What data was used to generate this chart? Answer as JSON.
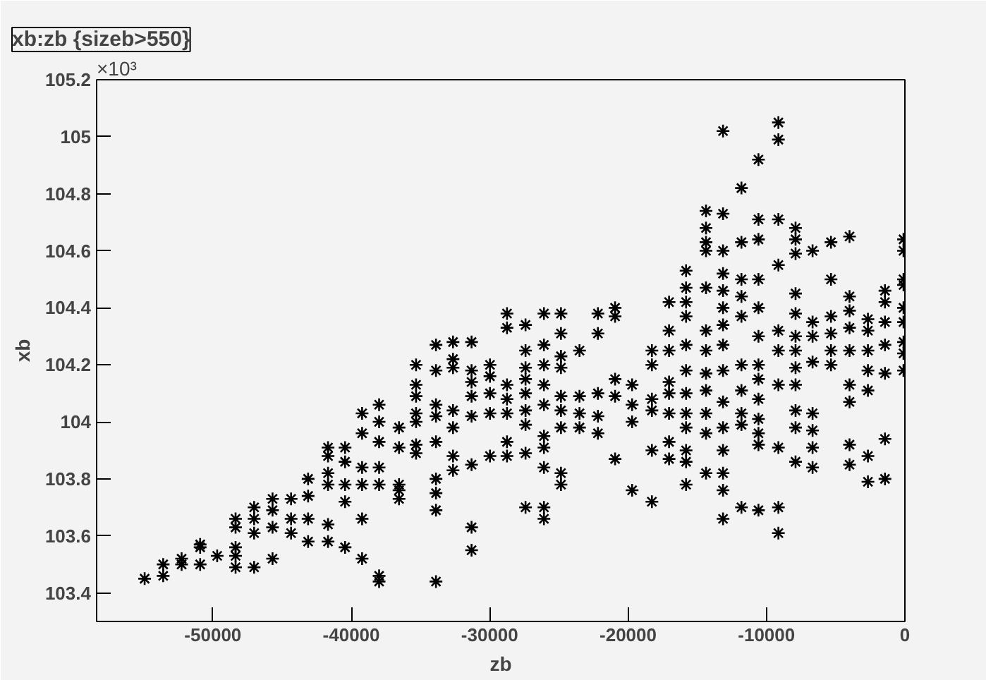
{
  "chart_data": {
    "type": "scatter",
    "title": "xb:zb {sizeb>550}",
    "xlabel": "zb",
    "ylabel": "xb",
    "annotations": [
      "×10³"
    ],
    "xlim": [
      -58400,
      0
    ],
    "ylim": [
      103.3,
      105.2
    ],
    "xticks": [
      -50000,
      -40000,
      -30000,
      -20000,
      -10000,
      0
    ],
    "yticks": [
      103.4,
      103.6,
      103.8,
      104,
      104.2,
      104.4,
      104.6,
      104.8,
      105,
      105.2
    ],
    "grid": false,
    "marker": "cross",
    "series": [
      {
        "color": "#000000",
        "x": [
          -54930,
          -53590,
          -53590,
          -52260,
          -52260,
          -50920,
          -50920,
          -50920,
          -49690,
          -48360,
          -48360,
          -48360,
          -48360,
          -48360,
          -47020,
          -47020,
          -47020,
          -47020,
          -45690,
          -45690,
          -45690,
          -45690,
          -44350,
          -44350,
          -44350,
          -43120,
          -43120,
          -43120,
          -43120,
          -41680,
          -41680,
          -41680,
          -41680,
          -41680,
          -41680,
          -40450,
          -40450,
          -40450,
          -40450,
          -40450,
          -39220,
          -39220,
          -39220,
          -39220,
          -39220,
          -39220,
          -37990,
          -37990,
          -37990,
          -37990,
          -37990,
          -37990,
          -37990,
          -36550,
          -36550,
          -36550,
          -36550,
          -36550,
          -35320,
          -35320,
          -35320,
          -35320,
          -35320,
          -35320,
          -35320,
          -33880,
          -33880,
          -33880,
          -33880,
          -33880,
          -33880,
          -33880,
          -33880,
          -33880,
          -32650,
          -32650,
          -32650,
          -32650,
          -32650,
          -32650,
          -32650,
          -31310,
          -31310,
          -31310,
          -31310,
          -31310,
          -31310,
          -31310,
          -31310,
          -29980,
          -29980,
          -29980,
          -29980,
          -29980,
          -28750,
          -28750,
          -28750,
          -28750,
          -28750,
          -28750,
          -28750,
          -27410,
          -27410,
          -27410,
          -27410,
          -27410,
          -27410,
          -27410,
          -27410,
          -27410,
          -26080,
          -26080,
          -26080,
          -26080,
          -26080,
          -26080,
          -26080,
          -26080,
          -26080,
          -26080,
          -24850,
          -24850,
          -24850,
          -24850,
          -24850,
          -24850,
          -24850,
          -24850,
          -24850,
          -23510,
          -23510,
          -23510,
          -23510,
          -22180,
          -22180,
          -22180,
          -22180,
          -22180,
          -20940,
          -20940,
          -20940,
          -20940,
          -20940,
          -19710,
          -19710,
          -19710,
          -19710,
          -18280,
          -18280,
          -18280,
          -18280,
          -18280,
          -18280,
          -17040,
          -17040,
          -17040,
          -17040,
          -17040,
          -17040,
          -17040,
          -17040,
          -15810,
          -15810,
          -15810,
          -15810,
          -15810,
          -15810,
          -15810,
          -15810,
          -15810,
          -15810,
          -15810,
          -15810,
          -14370,
          -14370,
          -14370,
          -14370,
          -14370,
          -14370,
          -14370,
          -14370,
          -14370,
          -14370,
          -14370,
          -14370,
          -13140,
          -13140,
          -13140,
          -13140,
          -13140,
          -13140,
          -13140,
          -13140,
          -13140,
          -13140,
          -13140,
          -13140,
          -13140,
          -13140,
          -13140,
          -11810,
          -11810,
          -11810,
          -11810,
          -11810,
          -11810,
          -11810,
          -11810,
          -11810,
          -11810,
          -10580,
          -10580,
          -10580,
          -10580,
          -10580,
          -10580,
          -10580,
          -10580,
          -10580,
          -10580,
          -10580,
          -10580,
          -10580,
          -9140,
          -9140,
          -9140,
          -9140,
          -9140,
          -9140,
          -9140,
          -9140,
          -9140,
          -9140,
          -7900,
          -7900,
          -7900,
          -7900,
          -7900,
          -7900,
          -7900,
          -7900,
          -7900,
          -7900,
          -7900,
          -7900,
          -6670,
          -6670,
          -6670,
          -6670,
          -6670,
          -6670,
          -6670,
          -6670,
          -5340,
          -5340,
          -5340,
          -5340,
          -5340,
          -5340,
          -4000,
          -4000,
          -4000,
          -4000,
          -4000,
          -4000,
          -4000,
          -4000,
          -4000,
          -2670,
          -2670,
          -2670,
          -2670,
          -2670,
          -2670,
          -2670,
          -1440,
          -1440,
          -1440,
          -1440,
          -1440,
          -1440,
          -1440,
          -100,
          -100,
          -100,
          -100,
          -100,
          -100,
          -100,
          -100,
          -100
        ],
        "values": [
          103.45,
          103.5,
          103.46,
          103.52,
          103.5,
          103.57,
          103.56,
          103.5,
          103.53,
          103.66,
          103.63,
          103.56,
          103.53,
          103.49,
          103.7,
          103.66,
          103.61,
          103.49,
          103.73,
          103.69,
          103.63,
          103.52,
          103.73,
          103.66,
          103.61,
          103.8,
          103.74,
          103.66,
          103.58,
          103.91,
          103.88,
          103.82,
          103.78,
          103.64,
          103.58,
          103.91,
          103.86,
          103.78,
          103.72,
          103.56,
          104.03,
          103.96,
          103.84,
          103.78,
          103.66,
          103.52,
          104.06,
          104.0,
          103.93,
          103.84,
          103.78,
          103.46,
          103.44,
          103.98,
          103.91,
          103.78,
          103.76,
          103.73,
          104.2,
          104.13,
          104.09,
          104.03,
          104.0,
          103.92,
          103.89,
          104.27,
          104.18,
          104.06,
          104.02,
          103.93,
          103.8,
          103.75,
          103.69,
          103.44,
          104.28,
          104.22,
          104.19,
          104.04,
          103.98,
          103.88,
          103.83,
          104.28,
          104.18,
          104.14,
          104.09,
          104.02,
          103.85,
          103.63,
          103.55,
          104.2,
          104.16,
          104.1,
          104.03,
          103.88,
          104.38,
          104.33,
          104.13,
          104.08,
          104.03,
          103.93,
          103.88,
          104.34,
          104.25,
          104.19,
          104.15,
          104.1,
          104.04,
          103.99,
          103.89,
          103.7,
          104.38,
          104.27,
          104.2,
          104.13,
          104.06,
          103.95,
          103.91,
          103.84,
          103.7,
          103.66,
          104.38,
          104.31,
          104.23,
          104.19,
          104.09,
          104.04,
          103.98,
          103.82,
          103.78,
          104.25,
          104.09,
          104.03,
          103.98,
          104.38,
          104.31,
          104.1,
          104.02,
          103.96,
          104.4,
          104.37,
          104.15,
          104.09,
          103.87,
          104.13,
          104.06,
          104.0,
          103.76,
          104.25,
          104.2,
          104.08,
          104.04,
          103.9,
          103.72,
          104.42,
          104.32,
          104.25,
          104.14,
          104.1,
          104.03,
          103.93,
          103.87,
          104.53,
          104.47,
          104.42,
          104.37,
          104.27,
          104.18,
          104.1,
          104.03,
          103.98,
          103.9,
          103.86,
          103.78,
          104.74,
          104.68,
          104.63,
          104.6,
          104.47,
          104.32,
          104.25,
          104.17,
          104.11,
          104.03,
          103.96,
          103.82,
          105.02,
          104.73,
          104.6,
          104.52,
          104.46,
          104.4,
          104.34,
          104.27,
          104.18,
          104.07,
          103.98,
          103.9,
          103.82,
          103.76,
          103.66,
          104.82,
          104.63,
          104.5,
          104.44,
          104.37,
          104.2,
          104.11,
          104.03,
          103.99,
          103.7,
          104.92,
          104.71,
          104.64,
          104.5,
          104.4,
          104.3,
          104.2,
          104.15,
          104.08,
          104.01,
          103.96,
          103.92,
          103.69,
          105.05,
          104.99,
          104.71,
          104.55,
          104.32,
          104.25,
          104.13,
          103.91,
          103.7,
          103.61,
          104.68,
          104.64,
          104.59,
          104.45,
          104.38,
          104.3,
          104.25,
          104.19,
          104.13,
          104.04,
          103.98,
          103.86,
          104.6,
          104.35,
          104.3,
          104.21,
          104.03,
          103.97,
          103.91,
          103.84,
          104.63,
          104.5,
          104.37,
          104.31,
          104.25,
          104.2,
          104.65,
          104.44,
          104.39,
          104.33,
          104.25,
          104.13,
          104.07,
          103.92,
          103.85,
          104.36,
          104.32,
          104.25,
          104.18,
          104.11,
          103.88,
          103.79,
          104.46,
          104.42,
          104.35,
          104.27,
          104.17,
          103.94,
          103.8,
          104.64,
          104.6,
          104.5,
          104.48,
          104.4,
          104.35,
          104.28,
          104.24,
          104.18
        ]
      }
    ]
  }
}
